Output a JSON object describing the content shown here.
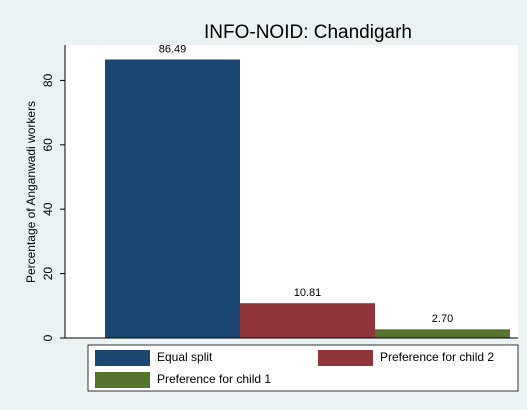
{
  "chart_data": {
    "type": "bar",
    "title": "INFO-NOID: Chandigarh",
    "y_label": "Percentage of Anganwadi workers",
    "categories": [
      null
    ],
    "series": [
      {
        "name": "Equal split",
        "color": "#1a476f",
        "values": [
          86.49
        ],
        "value_labels": [
          "86.49"
        ]
      },
      {
        "name": "Preference for child 2",
        "color": "#90353b",
        "values": [
          10.81
        ],
        "value_labels": [
          "10.81"
        ]
      },
      {
        "name": "Preference for child 1",
        "color": "#55752f",
        "values": [
          2.7
        ],
        "value_labels": [
          "2.70"
        ]
      }
    ],
    "ylim": [
      0,
      91
    ],
    "yticks": [
      0,
      20,
      40,
      60,
      80
    ],
    "grid": false
  }
}
